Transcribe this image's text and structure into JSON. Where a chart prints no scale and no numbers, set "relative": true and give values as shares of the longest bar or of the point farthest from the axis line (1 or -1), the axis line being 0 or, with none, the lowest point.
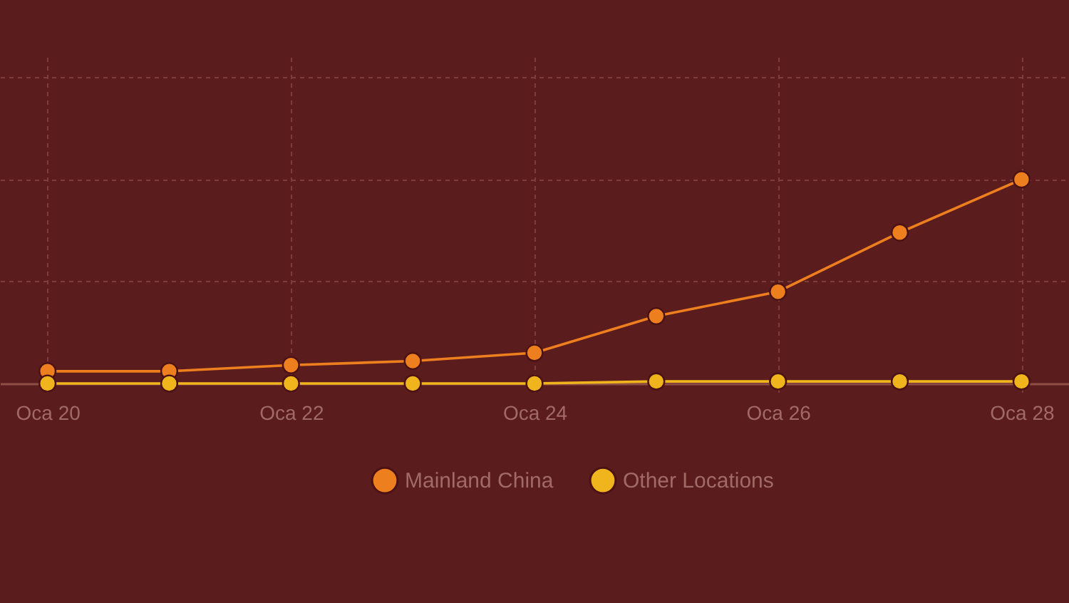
{
  "chart_data": {
    "type": "line",
    "categories": [
      "Oca 20",
      null,
      "Oca 22",
      null,
      "Oca 24",
      null,
      "Oca 26",
      null,
      "Oca 28"
    ],
    "relative": true,
    "series": [
      {
        "name": "Mainland China",
        "color": "#ee7f1f",
        "values": [
          0.06,
          0.06,
          0.09,
          0.11,
          0.15,
          0.33,
          0.45,
          0.74,
          1
        ]
      },
      {
        "name": "Other Locations",
        "color": "#f0b51c",
        "values": [
          0,
          0,
          0,
          0,
          0,
          0.01,
          0.01,
          0.01,
          0.01
        ]
      }
    ],
    "marker": "circle",
    "grid": true,
    "legend": "bottom"
  }
}
